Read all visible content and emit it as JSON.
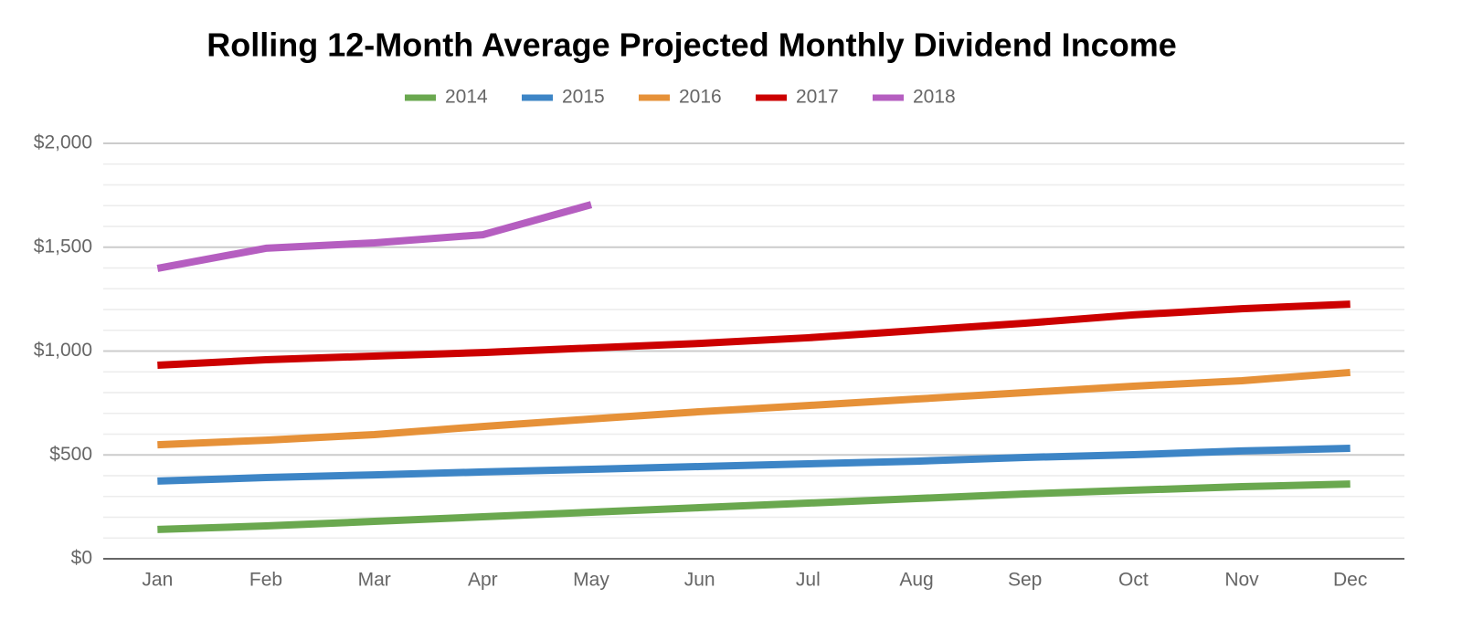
{
  "chart_data": {
    "type": "line",
    "title": "Rolling 12-Month Average Projected Monthly Dividend Income",
    "categories": [
      "Jan",
      "Feb",
      "Mar",
      "Apr",
      "May",
      "Jun",
      "Jul",
      "Aug",
      "Sep",
      "Oct",
      "Nov",
      "Dec"
    ],
    "series": [
      {
        "name": "2014",
        "color": "#6aa84f",
        "values": [
          141,
          158,
          180,
          202,
          224,
          246,
          268,
          290,
          312,
          330,
          347,
          360
        ]
      },
      {
        "name": "2015",
        "color": "#3d85c6",
        "values": [
          374,
          391,
          404,
          418,
          431,
          444,
          457,
          470,
          488,
          501,
          519,
          532
        ]
      },
      {
        "name": "2016",
        "color": "#e69138",
        "values": [
          549,
          571,
          598,
          637,
          673,
          708,
          738,
          769,
          800,
          831,
          857,
          897
        ]
      },
      {
        "name": "2017",
        "color": "#cc0000",
        "values": [
          932,
          958,
          976,
          993,
          1015,
          1037,
          1064,
          1099,
          1134,
          1174,
          1204,
          1226
        ]
      },
      {
        "name": "2018",
        "color": "#b55ec0",
        "values": [
          1398,
          1495,
          1521,
          1560,
          1705,
          null,
          null,
          null,
          null,
          null,
          null,
          null
        ]
      }
    ],
    "ylim": [
      0,
      2000
    ],
    "yticks": [
      {
        "value": 0,
        "label": "$0"
      },
      {
        "value": 500,
        "label": "$500"
      },
      {
        "value": 1000,
        "label": "$1,000"
      },
      {
        "value": 1500,
        "label": "$1,500"
      },
      {
        "value": 2000,
        "label": "$2,000"
      }
    ],
    "minor_yticks": [
      100,
      200,
      300,
      400,
      600,
      700,
      800,
      900,
      1100,
      1200,
      1300,
      1400,
      1600,
      1700,
      1800,
      1900
    ],
    "grid": true,
    "legend": "top"
  }
}
